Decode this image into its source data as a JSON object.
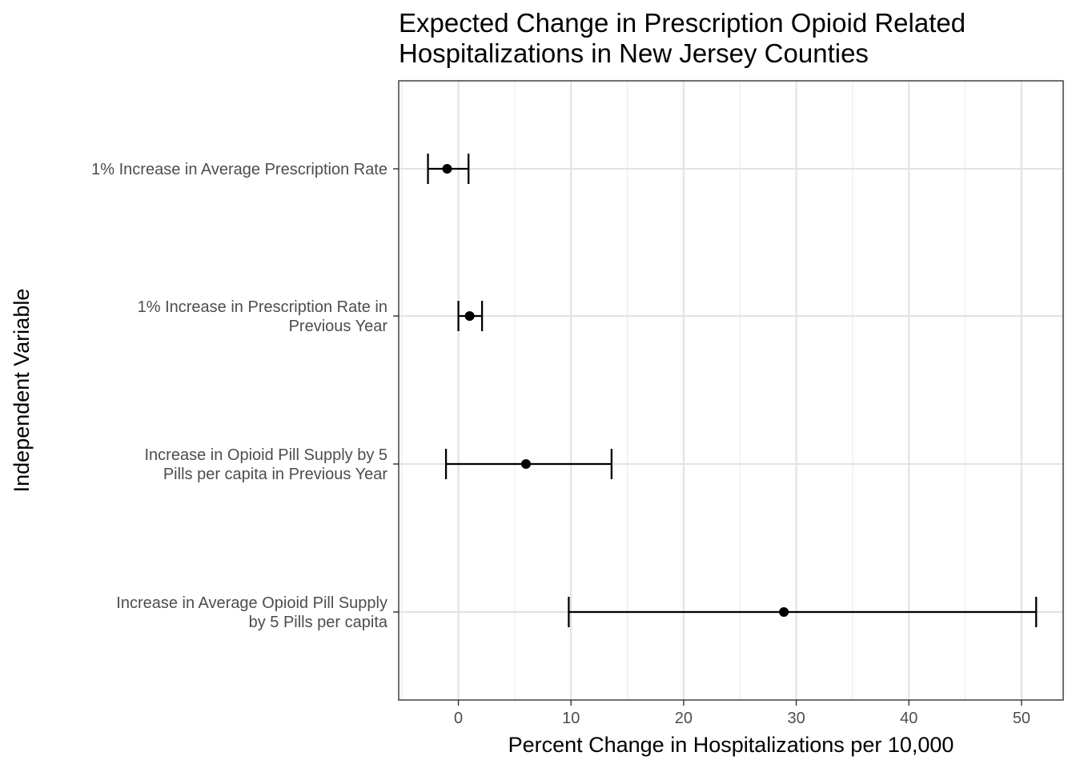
{
  "chart_data": {
    "type": "forest",
    "title_lines": [
      "Expected Change in Prescription Opioid Related",
      "Hospitalizations in New Jersey Counties"
    ],
    "xlabel": "Percent Change in Hospitalizations per 10,000",
    "ylabel": "Independent Variable",
    "xlim": [
      -5.3,
      53.7
    ],
    "x_ticks": [
      0,
      10,
      20,
      30,
      40,
      50
    ],
    "grid": true,
    "series": [
      {
        "label_lines": [
          "1% Increase in Average Prescription Rate"
        ],
        "estimate": -1.0,
        "lower": -2.7,
        "upper": 0.9
      },
      {
        "label_lines": [
          "1% Increase in Prescription Rate in",
          "Previous Year"
        ],
        "estimate": 1.0,
        "lower": 0.0,
        "upper": 2.1
      },
      {
        "label_lines": [
          "Increase in Opioid Pill Supply by 5",
          "Pills per capita in Previous Year"
        ],
        "estimate": 6.0,
        "lower": -1.1,
        "upper": 13.6
      },
      {
        "label_lines": [
          "Increase in Average Opioid Pill Supply",
          "by 5 Pills per capita"
        ],
        "estimate": 28.9,
        "lower": 9.8,
        "upper": 51.3
      }
    ]
  }
}
